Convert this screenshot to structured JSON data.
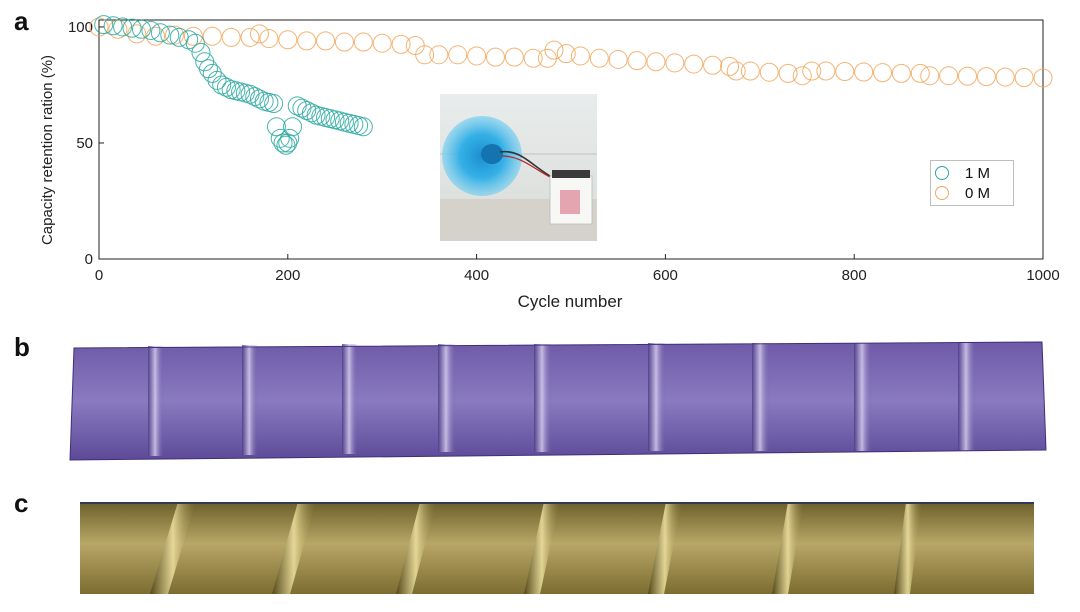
{
  "labels": {
    "a": "a",
    "b": "b",
    "c": "c"
  },
  "colors": {
    "series_1M": "#2aa8a0",
    "series_0M": "#f2a65a",
    "axis": "#222222"
  },
  "chart_data": {
    "type": "scatter",
    "xlabel": "Cycle number",
    "ylabel": "Capacity retention ration (%)",
    "xlim": [
      0,
      1000
    ],
    "ylim": [
      0,
      103
    ],
    "xticks": [
      "0",
      "200",
      "400",
      "600",
      "800",
      "1000"
    ],
    "yticks": [
      "0",
      "50",
      "100"
    ],
    "legend": {
      "placement": "right",
      "entries": [
        "1 M",
        "0 M"
      ]
    },
    "grid": false,
    "series": [
      {
        "name": "1 M",
        "marker": "open-circle",
        "points": [
          [
            5,
            101
          ],
          [
            15,
            100.5
          ],
          [
            25,
            100
          ],
          [
            35,
            99.5
          ],
          [
            45,
            99
          ],
          [
            55,
            98.5
          ],
          [
            65,
            97.5
          ],
          [
            75,
            96.5
          ],
          [
            85,
            95.5
          ],
          [
            95,
            94.5
          ],
          [
            102,
            93
          ],
          [
            108,
            89
          ],
          [
            112,
            85
          ],
          [
            116,
            82
          ],
          [
            120,
            80
          ],
          [
            125,
            77
          ],
          [
            130,
            75
          ],
          [
            135,
            74
          ],
          [
            140,
            73
          ],
          [
            145,
            72.5
          ],
          [
            150,
            72
          ],
          [
            155,
            71.5
          ],
          [
            160,
            71
          ],
          [
            165,
            70
          ],
          [
            170,
            69
          ],
          [
            175,
            68
          ],
          [
            180,
            67.5
          ],
          [
            185,
            67
          ],
          [
            188,
            57
          ],
          [
            192,
            52
          ],
          [
            195,
            50
          ],
          [
            198,
            49
          ],
          [
            200,
            50
          ],
          [
            202,
            52
          ],
          [
            205,
            57
          ],
          [
            210,
            66
          ],
          [
            215,
            65
          ],
          [
            220,
            64
          ],
          [
            225,
            63
          ],
          [
            230,
            62
          ],
          [
            235,
            61.5
          ],
          [
            240,
            61
          ],
          [
            245,
            60.5
          ],
          [
            250,
            60
          ],
          [
            255,
            59.5
          ],
          [
            260,
            59
          ],
          [
            265,
            58.5
          ],
          [
            270,
            58
          ],
          [
            275,
            57.5
          ],
          [
            280,
            57
          ]
        ]
      },
      {
        "name": "0 M",
        "marker": "open-circle",
        "points": [
          [
            0,
            100
          ],
          [
            20,
            99
          ],
          [
            40,
            97
          ],
          [
            60,
            96
          ],
          [
            80,
            96.5
          ],
          [
            100,
            96
          ],
          [
            120,
            96
          ],
          [
            140,
            95.5
          ],
          [
            160,
            95.5
          ],
          [
            170,
            97
          ],
          [
            180,
            95
          ],
          [
            200,
            94.5
          ],
          [
            220,
            94
          ],
          [
            240,
            94
          ],
          [
            260,
            93.5
          ],
          [
            280,
            93.5
          ],
          [
            300,
            93
          ],
          [
            320,
            92.5
          ],
          [
            335,
            92
          ],
          [
            345,
            88
          ],
          [
            360,
            88
          ],
          [
            380,
            88
          ],
          [
            400,
            87.5
          ],
          [
            420,
            87
          ],
          [
            440,
            87
          ],
          [
            460,
            86.5
          ],
          [
            475,
            86.5
          ],
          [
            482,
            90
          ],
          [
            495,
            88.5
          ],
          [
            510,
            87.5
          ],
          [
            530,
            86.5
          ],
          [
            550,
            86
          ],
          [
            570,
            85.5
          ],
          [
            590,
            85
          ],
          [
            610,
            84.5
          ],
          [
            630,
            84
          ],
          [
            650,
            83.5
          ],
          [
            668,
            83
          ],
          [
            675,
            81
          ],
          [
            690,
            81
          ],
          [
            710,
            80.5
          ],
          [
            730,
            80
          ],
          [
            745,
            79
          ],
          [
            755,
            81
          ],
          [
            770,
            81
          ],
          [
            790,
            80.8
          ],
          [
            810,
            80.6
          ],
          [
            830,
            80.3
          ],
          [
            850,
            80
          ],
          [
            870,
            80
          ],
          [
            880,
            79
          ],
          [
            900,
            79
          ],
          [
            920,
            78.8
          ],
          [
            940,
            78.6
          ],
          [
            960,
            78.4
          ],
          [
            980,
            78.2
          ],
          [
            1000,
            78
          ]
        ]
      }
    ]
  }
}
